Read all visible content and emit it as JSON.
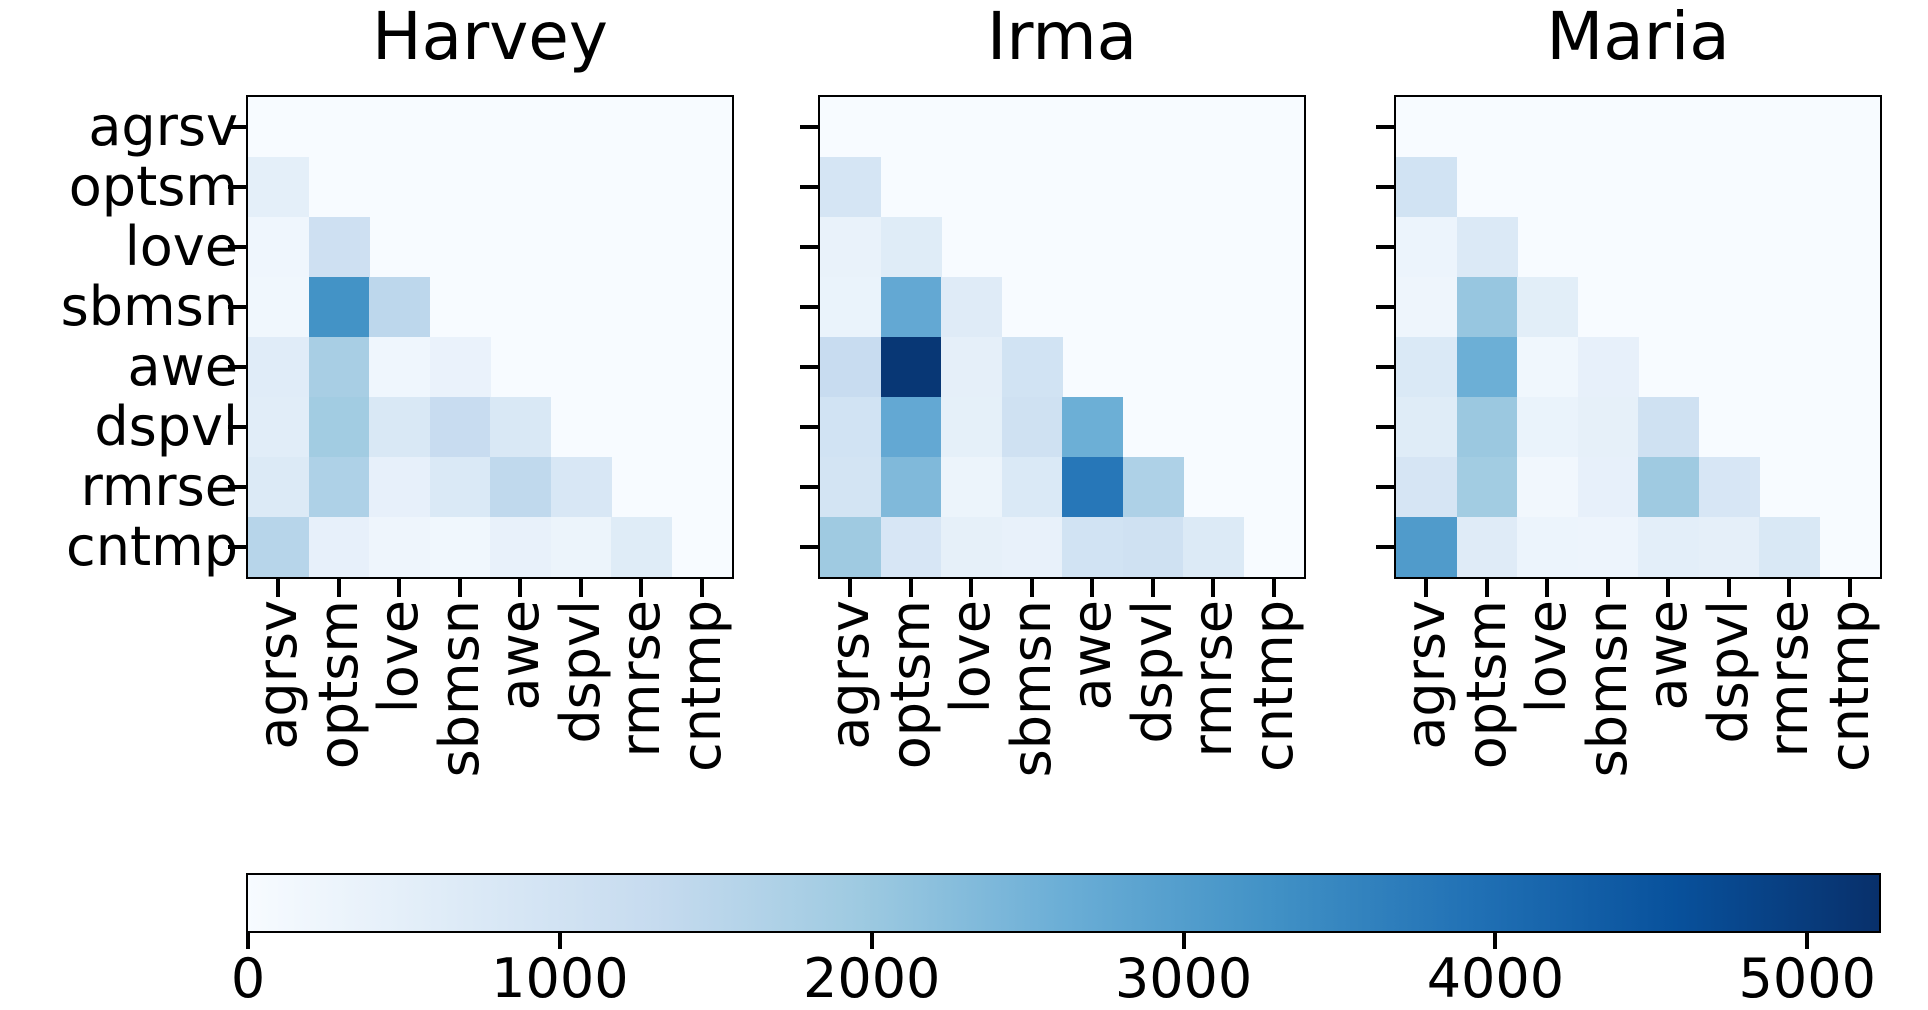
{
  "chart_data": {
    "type": "heatmap",
    "layout": "three lower-triangular co-occurrence matrices sharing one y-axis and one horizontal colorbar",
    "categories": [
      "agrsv",
      "optsm",
      "love",
      "sbmsn",
      "awe",
      "dspvl",
      "rmrse",
      "cntmp"
    ],
    "shared_y_labels": true,
    "panels": [
      {
        "title": "Harvey",
        "matrix": [
          [],
          [
            500
          ],
          [
            200,
            1100
          ],
          [
            170,
            3250,
            1450
          ],
          [
            600,
            1800,
            200,
            350
          ],
          [
            580,
            1900,
            780,
            1250,
            780
          ],
          [
            700,
            1700,
            430,
            750,
            1400,
            820
          ],
          [
            1550,
            430,
            230,
            180,
            390,
            300,
            620
          ]
        ]
      },
      {
        "title": "Irma",
        "matrix": [
          [],
          [
            900
          ],
          [
            370,
            620
          ],
          [
            330,
            2750,
            640
          ],
          [
            1250,
            5100,
            470,
            1000
          ],
          [
            1000,
            2750,
            460,
            1050,
            2600
          ],
          [
            950,
            2350,
            300,
            750,
            3800,
            1700
          ],
          [
            1950,
            850,
            450,
            390,
            1000,
            1050,
            700
          ]
        ]
      },
      {
        "title": "Maria",
        "matrix": [
          [],
          [
            1000
          ],
          [
            280,
            730
          ],
          [
            230,
            2050,
            550
          ],
          [
            750,
            2600,
            180,
            430
          ],
          [
            620,
            2000,
            330,
            450,
            1050
          ],
          [
            880,
            1900,
            150,
            430,
            1950,
            850
          ],
          [
            3050,
            640,
            280,
            270,
            530,
            480,
            790
          ]
        ]
      }
    ],
    "value_scale": {
      "vmin": 0,
      "vmax": 5230
    },
    "colormap": {
      "name": "Blues",
      "stops": [
        "#f7fbff",
        "#deebf7",
        "#c6dbef",
        "#9ecae1",
        "#6baed6",
        "#4292c6",
        "#2171b5",
        "#08519c",
        "#08306b"
      ]
    },
    "colorbar": {
      "orientation": "horizontal",
      "ticks": [
        {
          "label": "0",
          "value": 0
        },
        {
          "label": "1000",
          "value": 1000
        },
        {
          "label": "2000",
          "value": 2000
        },
        {
          "label": "3000",
          "value": 3000
        },
        {
          "label": "4000",
          "value": 4000
        },
        {
          "label": "5000",
          "value": 5000
        }
      ]
    }
  }
}
